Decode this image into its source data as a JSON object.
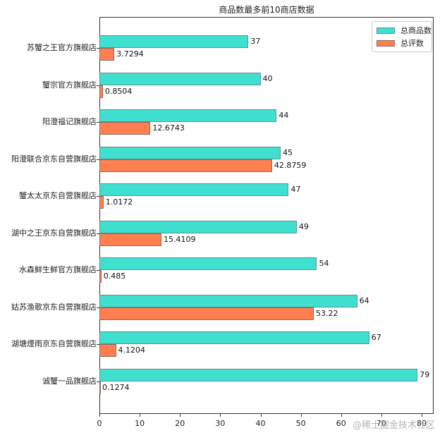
{
  "chart_data": {
    "type": "bar",
    "orientation": "horizontal",
    "title": "商品数最多前10商店数据",
    "xlabel": "",
    "ylabel": "",
    "xlim": [
      0,
      83
    ],
    "xticks": [
      0,
      10,
      20,
      30,
      40,
      50,
      60,
      70,
      80
    ],
    "grid": false,
    "legend_position": "upper right",
    "categories": [
      "苏蟹之王官方旗舰店",
      "蟹宗官方旗舰店",
      "阳澄福记旗舰店",
      "阳澄联合京东自营旗舰店",
      "蟹太太京东自营旗舰店",
      "湖中之王京东自营旗舰店",
      "水森鲜生鲜官方旗舰店",
      "姑苏渔歌京东自营旗舰店",
      "湖塘煙雨京东自营旗舰店",
      "诚蟹一品旗舰店"
    ],
    "series": [
      {
        "name": "总商品数",
        "color": "#40E0D0",
        "values": [
          37,
          40,
          44,
          45,
          47,
          49,
          54,
          64,
          67,
          79
        ],
        "labels": [
          "37",
          "40",
          "44",
          "45",
          "47",
          "49",
          "54",
          "64",
          "67",
          "79"
        ]
      },
      {
        "name": "总评数",
        "color": "#FF7F50",
        "values": [
          3.7294,
          0.8504,
          12.6743,
          42.8759,
          1.0172,
          15.4109,
          0.485,
          53.22,
          4.1204,
          0.1274
        ],
        "labels": [
          "3.7294",
          "0.8504",
          "12.6743",
          "42.8759",
          "1.0172",
          "15.4109",
          "0.485",
          "53.22",
          "4.1204",
          "0.1274"
        ]
      }
    ]
  },
  "watermark": "@稀土掘金技术社区"
}
